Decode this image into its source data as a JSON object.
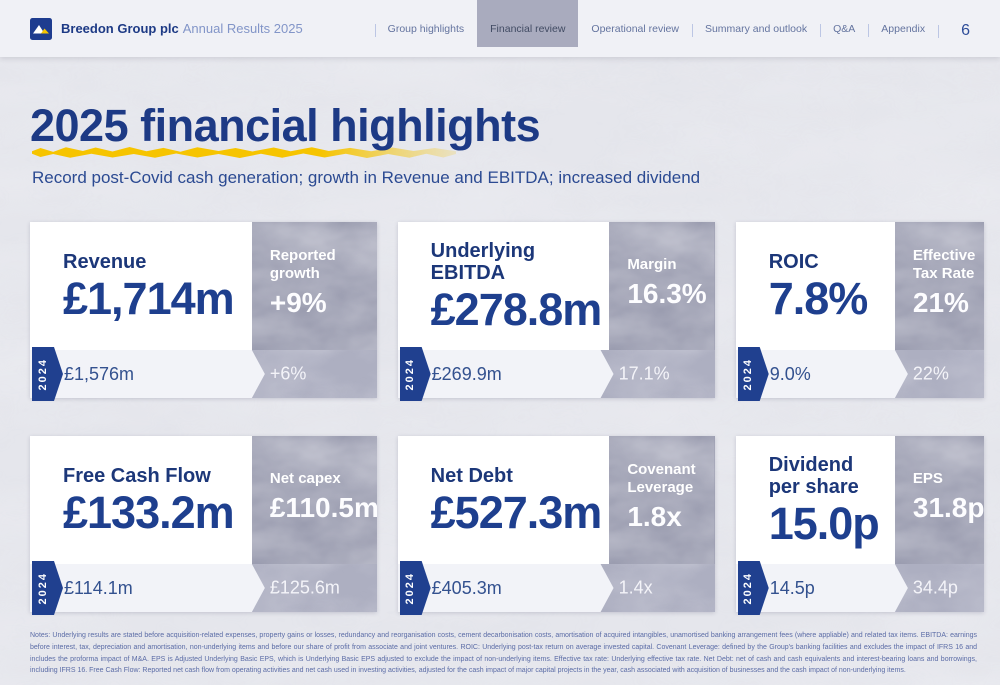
{
  "header": {
    "brand_bold": "Breedon Group plc",
    "brand_light": "Annual Results 2025",
    "tabs": [
      {
        "label": "Group highlights",
        "active": false,
        "divider": true
      },
      {
        "label": "Financial review",
        "active": true,
        "divider": false
      },
      {
        "label": "Operational review",
        "active": false,
        "divider": false
      },
      {
        "label": "Summary and outlook",
        "active": false,
        "divider": true
      },
      {
        "label": "Q&A",
        "active": false,
        "divider": true
      },
      {
        "label": "Appendix",
        "active": false,
        "divider": true
      }
    ],
    "page_number": "6"
  },
  "title": "2025 financial highlights",
  "subtitle": "Record post-Covid cash generation; growth in Revenue and EBITDA; increased dividend",
  "year_tag": "2024",
  "cards": [
    {
      "label": "Revenue",
      "value": "£1,714m",
      "sub_label": "Reported growth",
      "sub_value": "+9%",
      "prev_value": "£1,576m",
      "prev_sub_value": "+6%"
    },
    {
      "label": "Underlying EBITDA",
      "value": "£278.8m",
      "sub_label": "Margin",
      "sub_value": "16.3%",
      "prev_value": "£269.9m",
      "prev_sub_value": "17.1%"
    },
    {
      "label": "ROIC",
      "value": "7.8%",
      "sub_label": "Effective Tax Rate",
      "sub_value": "21%",
      "prev_value": "9.0%",
      "prev_sub_value": "22%"
    },
    {
      "label": "Free Cash Flow",
      "value": "£133.2m",
      "sub_label": "Net capex",
      "sub_value": "£110.5m",
      "prev_value": "£114.1m",
      "prev_sub_value": "£125.6m"
    },
    {
      "label": "Net Debt",
      "value": "£527.3m",
      "sub_label": "Covenant Leverage",
      "sub_value": "1.8x",
      "prev_value": "£405.3m",
      "prev_sub_value": "1.4x"
    },
    {
      "label": "Dividend per share",
      "value": "15.0p",
      "sub_label": "EPS",
      "sub_value": "31.8p",
      "prev_value": "14.5p",
      "prev_sub_value": "34.4p"
    }
  ],
  "notes": "Notes: Underlying results are stated before acquisition-related expenses, property gains or losses, redundancy and reorganisation costs, cement decarbonisation costs, amortisation of acquired intangibles, unamortised banking arrangement fees (where appliable) and related tax items.  EBITDA: earnings before interest, tax, depreciation and amortisation, non-underlying items and before our share of profit from associate and joint ventures. ROIC: Underlying post-tax return on average invested capital. Covenant Leverage: defined by the Group's banking facilities and excludes the impact of IFRS 16 and includes the proforma impact of M&A. EPS is Adjusted Underlying Basic EPS, which is Underlying Basic EPS adjusted to exclude the impact of non-underlying items.  Effective tax rate: Underlying effective tax rate. Net Debt: net of cash and cash equivalents and interest-bearing loans and borrowings, including IFRS 16. Free Cash Flow:  Reported net cash flow from operating activities and net cash used in investing activities, adjusted for the cash impact of major capital projects in the year, cash associated with acquisition of businesses and the cash impact of non-underlying items.",
  "colors": {
    "navy": "#1e3f8e",
    "accent_yellow": "#f6c400",
    "stone_gray": "#9b9db0",
    "active_tab_gray": "#a9abbe"
  }
}
